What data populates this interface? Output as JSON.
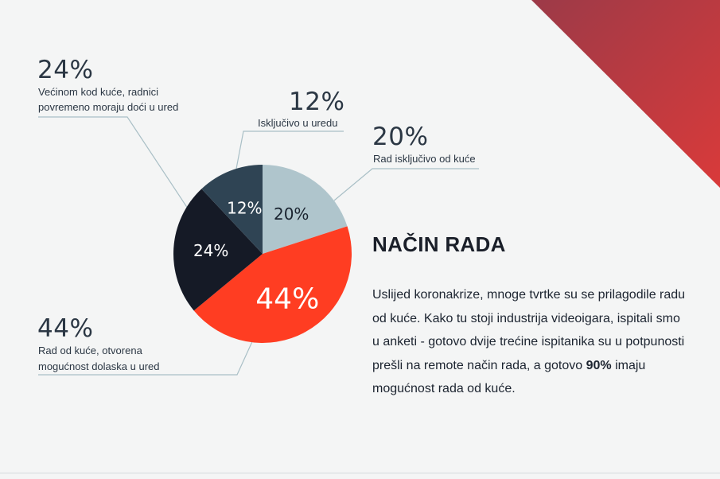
{
  "colors": {
    "background": "#f4f5f5",
    "accent_red": "#ff3d22",
    "navy": "#151a26",
    "slate": "#2f4454",
    "light_blue": "#afc5cc",
    "leader_line": "#a9bfc6",
    "corner_gradient": [
      "#9c3a48",
      "#d93a3a"
    ]
  },
  "chart_data": {
    "type": "pie",
    "slices": [
      {
        "value": 20,
        "label": "20%",
        "description": "Rad isključivo od kuće",
        "color": "#afc5cc"
      },
      {
        "value": 44,
        "label": "44%",
        "description": "Rad od kuće, otvorena mogućnost dolaska u ured",
        "color": "#ff3d22"
      },
      {
        "value": 24,
        "label": "24%",
        "description": "Većinom kod kuće, radnici povremeno moraju doći u ured",
        "color": "#151a26"
      },
      {
        "value": 12,
        "label": "12%",
        "description": "Isključivo u uredu",
        "color": "#2f4454"
      }
    ]
  },
  "callouts": {
    "c24": {
      "pct": "24%",
      "line1": "Većinom kod kuće, radnici",
      "line2": "povremeno moraju doći u ured"
    },
    "c12": {
      "pct": "12%",
      "line1": "Isključivo u uredu"
    },
    "c20": {
      "pct": "20%",
      "line1": "Rad isključivo od kuće"
    },
    "c44": {
      "pct": "44%",
      "line1": "Rad od kuće, otvorena",
      "line2": "mogućnost dolaska u ured"
    }
  },
  "section": {
    "heading": "NAČIN RADA",
    "body_before": "Uslijed koronakrize, mnoge tvrtke su se prilagodile radu od kuće. Kako tu stoji industrija videoigara, ispitali smo u anketi - gotovo dvije trećine ispitanika su u potpunosti prešli na remote način rada, a gotovo ",
    "body_bold": "90%",
    "body_after": " imaju mogućnost rada od kuće."
  }
}
